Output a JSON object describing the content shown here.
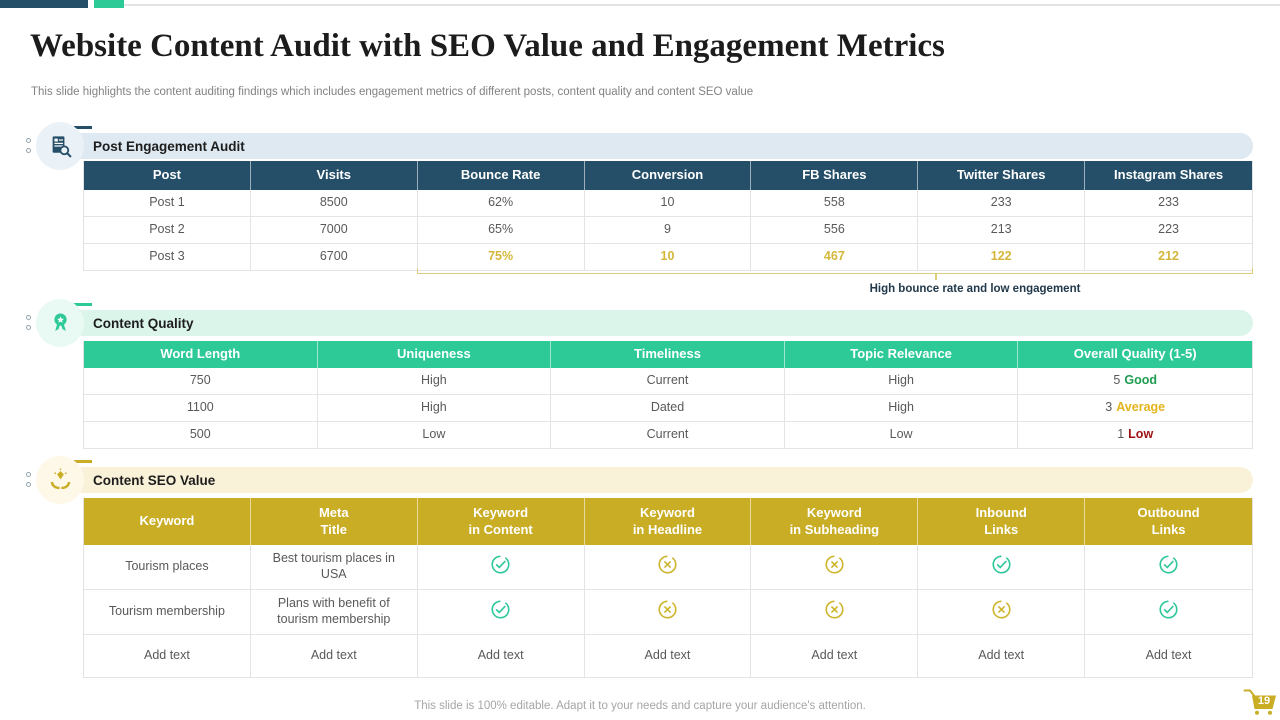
{
  "slide": {
    "title": "Website Content Audit with SEO Value and Engagement Metrics",
    "subtitle": "This slide highlights the content auditing findings which includes engagement metrics of different posts, content quality and content SEO value",
    "footer_note": "This slide is 100% editable. Adapt it to your needs and capture your audience's attention.",
    "page_number": "19"
  },
  "colors": {
    "navy": "#254f69",
    "green": "#2dca97",
    "gold": "#c9ad24",
    "highlight_gold": "#d4b73a",
    "good_green": "#1e9c50",
    "average_amber": "#e4b41d",
    "low_red": "#9c1212",
    "check_green": "#2fc79c",
    "cross_gold": "#cdb62e"
  },
  "sections": {
    "engagement": {
      "title": "Post Engagement Audit",
      "icon": "audit-report-icon",
      "columns": [
        "Post",
        "Visits",
        "Bounce Rate",
        "Conversion",
        "FB Shares",
        "Twitter Shares",
        "Instagram Shares"
      ],
      "rows": [
        [
          "Post 1",
          "8500",
          "62%",
          "10",
          "558",
          "233",
          "233"
        ],
        [
          "Post 2",
          "7000",
          "65%",
          "9",
          "556",
          "213",
          "223"
        ],
        [
          "Post 3",
          "6700",
          "75%",
          "10",
          "467",
          "122",
          "212"
        ]
      ],
      "note": "High bounce rate and low engagement"
    },
    "quality": {
      "title": "Content Quality",
      "icon": "award-ribbon-icon",
      "columns": [
        "Word Length",
        "Uniqueness",
        "Timeliness",
        "Topic Relevance",
        "Overall Quality (1-5)"
      ],
      "rows": [
        [
          "750",
          "High",
          "Current",
          "High"
        ],
        [
          "1100",
          "High",
          "Dated",
          "High"
        ],
        [
          "500",
          "Low",
          "Current",
          "Low"
        ]
      ],
      "quality": [
        {
          "score": "5",
          "label": "Good",
          "tone": "good"
        },
        {
          "score": "3",
          "label": "Average",
          "tone": "average"
        },
        {
          "score": "1",
          "label": "Low",
          "tone": "low"
        }
      ]
    },
    "seo": {
      "title": "Content SEO Value",
      "icon": "hands-value-icon",
      "columns": [
        {
          "line1": "Keyword",
          "line2": ""
        },
        {
          "line1": "Meta",
          "line2": "Title"
        },
        {
          "line1": "Keyword",
          "line2": "in Content"
        },
        {
          "line1": "Keyword",
          "line2": "in Headline"
        },
        {
          "line1": "Keyword",
          "line2": "in Subheading"
        },
        {
          "line1": "Inbound",
          "line2": "Links"
        },
        {
          "line1": "Outbound",
          "line2": "Links"
        }
      ],
      "rows": [
        {
          "keyword": "Tourism places",
          "meta_title": "Best tourism places in USA",
          "marks": [
            "check",
            "cross",
            "cross",
            "check",
            "check"
          ]
        },
        {
          "keyword": "Tourism membership",
          "meta_title": "Plans with benefit of tourism membership",
          "marks": [
            "check",
            "cross",
            "cross",
            "cross",
            "check"
          ]
        },
        {
          "keyword": "Add text",
          "meta_title": "Add text",
          "marks": [
            "Add text",
            "Add text",
            "Add text",
            "Add text",
            "Add text"
          ]
        }
      ]
    }
  }
}
